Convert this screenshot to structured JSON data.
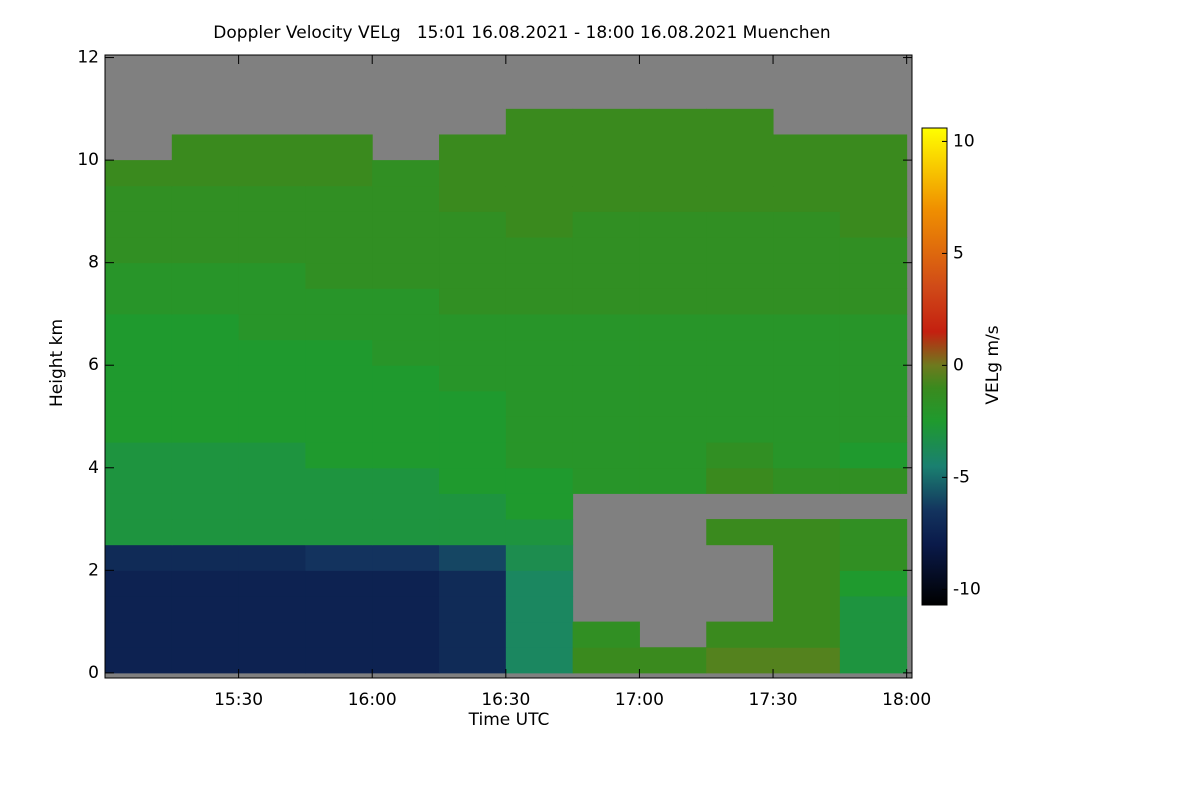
{
  "chart_data": {
    "type": "heatmap",
    "title": "Doppler Velocity VELg   15:01 16.08.2021 - 18:00 16.08.2021 Muenchen",
    "xlabel": "Time UTC",
    "ylabel": "Height km",
    "colorbar_label": "VELg m/s",
    "xlim": [
      15.0,
      18.02
    ],
    "xticks": [
      {
        "value": 15.5,
        "label": "15:30"
      },
      {
        "value": 16.0,
        "label": "16:00"
      },
      {
        "value": 16.5,
        "label": "16:30"
      },
      {
        "value": 17.0,
        "label": "17:00"
      },
      {
        "value": 17.5,
        "label": "17:30"
      },
      {
        "value": 18.0,
        "label": "18:00"
      }
    ],
    "ylim": [
      -0.1,
      12.05
    ],
    "yticks": [
      0,
      2,
      4,
      6,
      8,
      10,
      12
    ],
    "clim": [
      -10.7,
      10.6
    ],
    "cticks": [
      -10,
      -5,
      0,
      5,
      10
    ],
    "colorscale": [
      [
        -10.7,
        "#000000"
      ],
      [
        -8,
        "#0a1a4a"
      ],
      [
        -6.5,
        "#13335e"
      ],
      [
        -4.5,
        "#1a8070"
      ],
      [
        -2.5,
        "#1f9a2e"
      ],
      [
        -1,
        "#3a8a1e"
      ],
      [
        0,
        "#6e7a1e"
      ],
      [
        1.5,
        "#c42010"
      ],
      [
        3.5,
        "#d04a18"
      ],
      [
        7,
        "#f09000"
      ],
      [
        10.6,
        "#ffff00"
      ]
    ],
    "missing_color": "#808080",
    "xbins": [
      15.0,
      15.25,
      15.5,
      15.75,
      16.0,
      16.25,
      16.5,
      16.75,
      17.0,
      17.25,
      17.5,
      17.75,
      18.0
    ],
    "ybins": [
      0,
      0.5,
      1,
      1.5,
      2,
      2.5,
      3,
      3.5,
      4,
      4.5,
      5,
      5.5,
      6,
      6.5,
      7,
      7.5,
      8,
      8.5,
      9,
      9.5,
      10,
      10.5,
      11,
      11.5,
      12
    ],
    "z": [
      [
        -7.5,
        -7.5,
        -7.5,
        -7.5,
        -7.5,
        -7,
        -4,
        -1,
        -1,
        -0.5,
        -0.5,
        -3
      ],
      [
        -7.5,
        -7.5,
        -7.5,
        -7.5,
        -7.5,
        -7,
        -4,
        -1.5,
        null,
        -1,
        -1,
        -3
      ],
      [
        -7.5,
        -7.5,
        -7.5,
        -7.5,
        -7.5,
        -7,
        -4,
        null,
        null,
        null,
        -1,
        -3
      ],
      [
        -7.5,
        -7.5,
        -7.5,
        -7.5,
        -7.5,
        -7,
        -4,
        null,
        null,
        null,
        -1,
        -2.5
      ],
      [
        -7,
        -7,
        -7,
        -6.5,
        -6.5,
        -6,
        -3.5,
        null,
        null,
        null,
        -1,
        -1.5
      ],
      [
        -3,
        -3,
        -3,
        -3,
        -3,
        -3,
        -3,
        null,
        null,
        -1,
        -1,
        -1.5
      ],
      [
        -3,
        -3,
        -3,
        -3,
        -3,
        -3,
        -2.5,
        null,
        null,
        null,
        null,
        null
      ],
      [
        -3,
        -3,
        -3,
        -3,
        -3,
        -2.5,
        -2.5,
        -2,
        -2,
        -1,
        -1.5,
        -1.5
      ],
      [
        -3,
        -3,
        -3,
        -2.5,
        -2.5,
        -2.5,
        -2,
        -2,
        -2,
        -1.5,
        -2,
        -2.5
      ],
      [
        -2.5,
        -2.5,
        -2.5,
        -2.5,
        -2.5,
        -2.5,
        -2,
        -2,
        -2,
        -2,
        -2,
        -2
      ],
      [
        -2.5,
        -2.5,
        -2.5,
        -2.5,
        -2.5,
        -2.5,
        -2,
        -2,
        -2,
        -2,
        -2,
        -2
      ],
      [
        -2.5,
        -2.5,
        -2.5,
        -2.5,
        -2.5,
        -2,
        -2,
        -2,
        -2,
        -2,
        -2,
        -2
      ],
      [
        -2.5,
        -2.5,
        -2.5,
        -2.5,
        -2,
        -2,
        -2,
        -2,
        -2,
        -2,
        -2,
        -2
      ],
      [
        -2.5,
        -2.5,
        -2,
        -2,
        -2,
        -2,
        -2,
        -2,
        -2,
        -2,
        -2,
        -2
      ],
      [
        -2,
        -2,
        -2,
        -2,
        -2,
        -1.5,
        -1.5,
        -1.5,
        -1.5,
        -1.5,
        -1.5,
        -1.5
      ],
      [
        -2,
        -2,
        -2,
        -1.5,
        -1.5,
        -1.5,
        -1.5,
        -1.5,
        -1.5,
        -1.5,
        -1.5,
        -1.5
      ],
      [
        -1.5,
        -1.5,
        -1.5,
        -1.5,
        -1.5,
        -1.5,
        -1.5,
        -1.5,
        -1.5,
        -1.5,
        -1.5,
        -1.5
      ],
      [
        -1.5,
        -1.5,
        -1.5,
        -1.5,
        -1.5,
        -1.5,
        -1,
        -1.5,
        -1.5,
        -1.5,
        -1.5,
        -1
      ],
      [
        -1.5,
        -1.5,
        -1.5,
        -1.5,
        -1.5,
        -1,
        -1,
        -1,
        -1,
        -1,
        -1,
        -1
      ],
      [
        -1,
        -1,
        -1,
        -1,
        -1.5,
        -1,
        -1,
        -1,
        -1,
        -1,
        -1,
        -1
      ],
      [
        null,
        -1,
        -1,
        -1,
        null,
        -1,
        -1,
        -1,
        -1,
        -1,
        -1,
        -1
      ],
      [
        null,
        null,
        null,
        null,
        null,
        null,
        -1,
        -1,
        -1,
        -1,
        null,
        null
      ],
      [
        null,
        null,
        null,
        null,
        null,
        null,
        null,
        null,
        null,
        null,
        null,
        null
      ],
      [
        null,
        null,
        null,
        null,
        null,
        null,
        null,
        null,
        null,
        null,
        null,
        null
      ]
    ]
  }
}
